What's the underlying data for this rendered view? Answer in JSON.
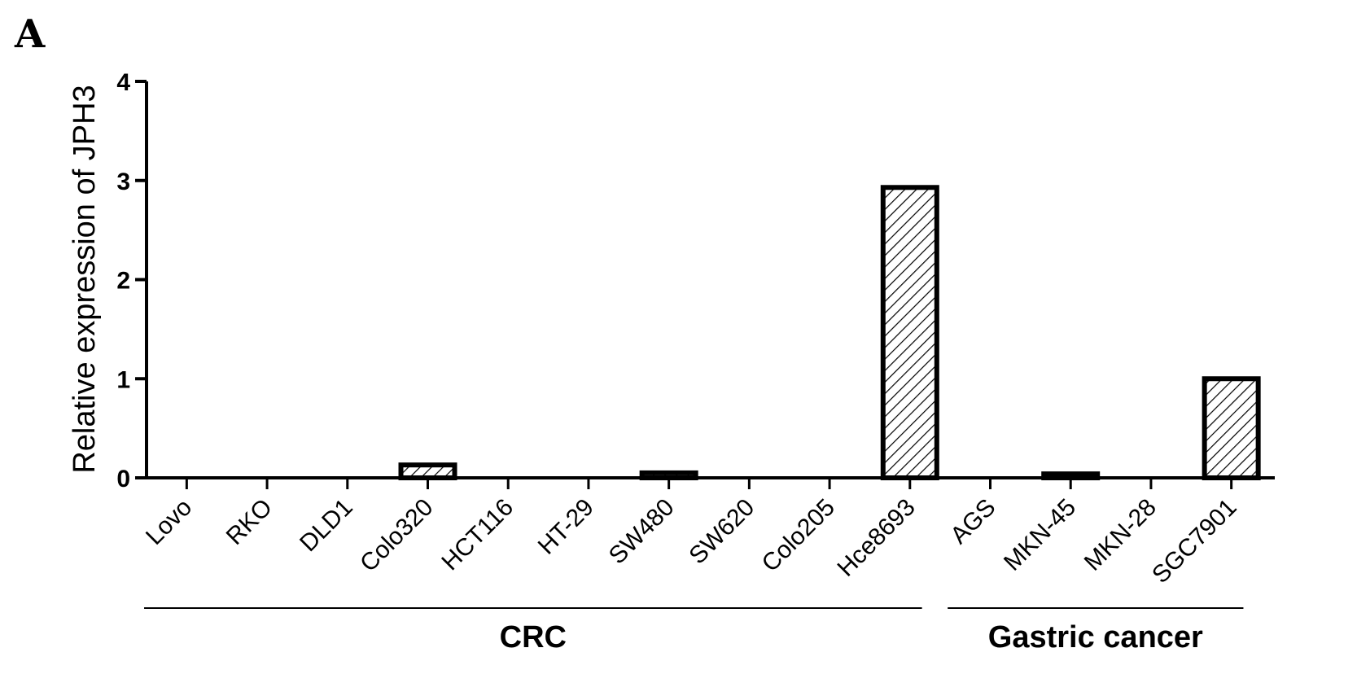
{
  "panel_label": "A",
  "chart_data": {
    "type": "bar",
    "title": "",
    "xlabel": "",
    "ylabel": "Relative expression of JPH3",
    "ylim": [
      0,
      4
    ],
    "yticks": [
      "0",
      "1",
      "2",
      "3",
      "4"
    ],
    "categories": [
      "Lovo",
      "RKO",
      "DLD1",
      "Colo320",
      "HCT116",
      "HT-29",
      "SW480",
      "SW620",
      "Colo205",
      "Hce8693",
      "AGS",
      "MKN-45",
      "MKN-28",
      "SGC7901"
    ],
    "values": [
      0,
      0,
      0,
      0.13,
      0,
      0,
      0.05,
      0,
      0,
      2.93,
      0,
      0.04,
      0,
      1.0
    ],
    "groups": [
      {
        "label": "CRC",
        "categories": [
          "Lovo",
          "RKO",
          "DLD1",
          "Colo320",
          "HCT116",
          "HT-29",
          "SW480",
          "SW620",
          "Colo205",
          "Hce8693"
        ]
      },
      {
        "label": "Gastric cancer",
        "categories": [
          "AGS",
          "MKN-45",
          "MKN-28",
          "SGC7901"
        ]
      }
    ],
    "bar_fill": "hatched",
    "bar_color": "#000000",
    "grid": false,
    "legend": "none"
  }
}
